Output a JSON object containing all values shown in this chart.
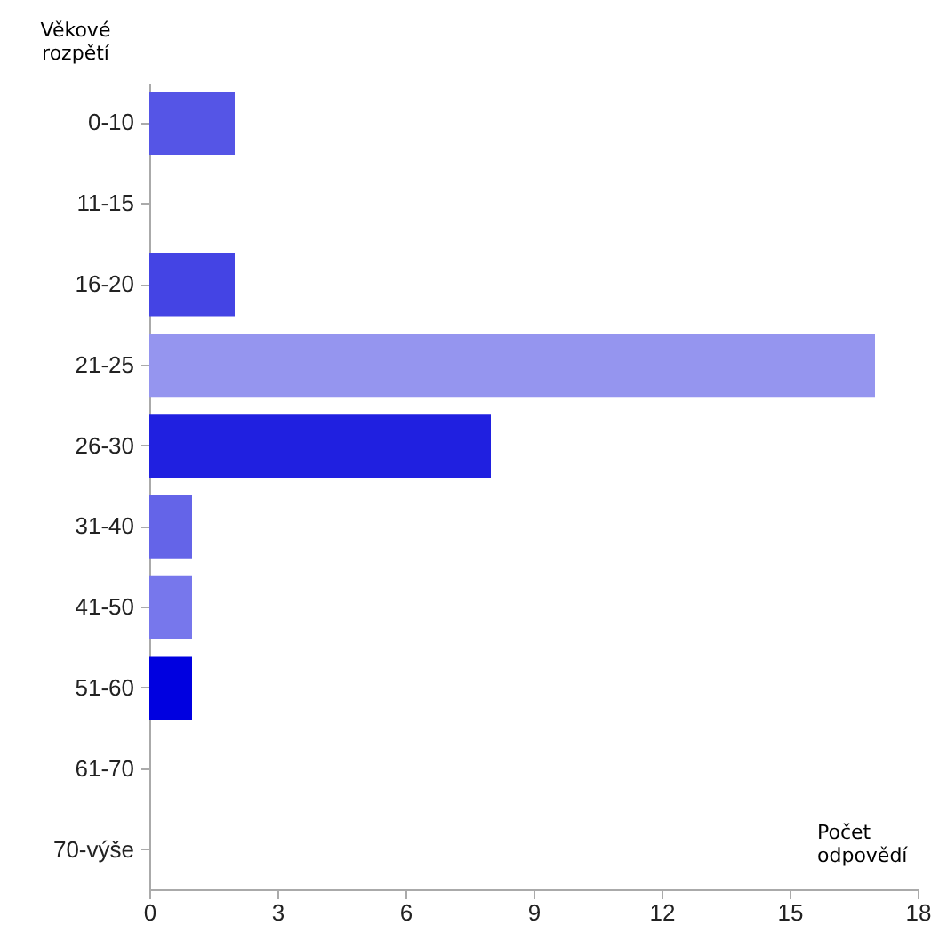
{
  "chart_data": {
    "type": "bar",
    "orientation": "horizontal",
    "ylabel": "Věkové rozpětí",
    "xlabel": "Počet odpovědí",
    "categories": [
      "0-10",
      "11-15",
      "16-20",
      "21-25",
      "26-30",
      "31-40",
      "41-50",
      "51-60",
      "61-70",
      "70-výše"
    ],
    "values": [
      2,
      0,
      2,
      17,
      8,
      1,
      1,
      1,
      0,
      0
    ],
    "colors": [
      "#5555e6",
      "#5555e6",
      "#4444e4",
      "#9595ef",
      "#2020e0",
      "#6464e8",
      "#7777ec",
      "#0000e0",
      "#5555e6",
      "#5555e6"
    ],
    "xlim": [
      0,
      18
    ],
    "xticks": [
      0,
      3,
      6,
      9,
      12,
      15,
      18
    ],
    "grid": false
  }
}
